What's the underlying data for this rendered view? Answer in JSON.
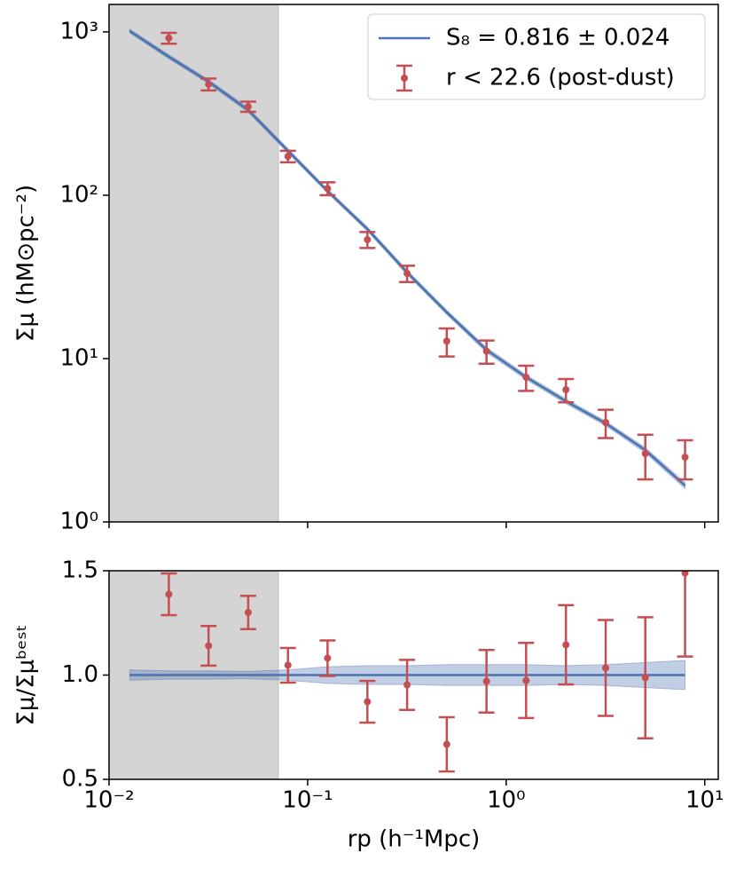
{
  "chart_data": [
    {
      "type": "errorbar",
      "ylabel": "Σμ (hM⊙pc⁻²)",
      "xlog": true,
      "ylog": true,
      "xlim": [
        0.01,
        11.7
      ],
      "ylim": [
        1,
        1472
      ],
      "xticks": [
        0.01,
        0.1,
        1,
        10
      ],
      "yticks": [
        {
          "value": 1,
          "label": "10⁰"
        },
        {
          "value": 10,
          "label": "10¹"
        },
        {
          "value": 100,
          "label": "10²"
        },
        {
          "value": 1000,
          "label": "10³"
        }
      ],
      "shaded_xrange": [
        0.01,
        0.0713
      ],
      "legend": "upper right",
      "series": [
        {
          "name": "S₈ = 0.816 ± 0.024",
          "kind": "line",
          "color": "#4c72b0",
          "x": [
            0.0127,
            0.02,
            0.0317,
            0.0502,
            0.0796,
            0.126,
            0.2,
            0.317,
            0.502,
            0.796,
            1.26,
            2.0,
            3.17,
            5.02,
            7.96
          ],
          "values": [
            1012,
            704,
            496,
            332,
            187,
            106,
            62.1,
            33.7,
            19.2,
            11.3,
            7.69,
            5.48,
            4.01,
            2.75,
            1.67
          ],
          "band_lower": [
            985,
            684,
            482,
            322,
            181,
            103,
            60.2,
            32.6,
            18.6,
            10.9,
            7.44,
            5.3,
            3.88,
            2.65,
            1.6
          ],
          "band_upper": [
            1040,
            724,
            510,
            342,
            193,
            109,
            64,
            34.8,
            19.8,
            11.7,
            7.94,
            5.66,
            4.14,
            2.85,
            1.74
          ]
        },
        {
          "name": "r < 22.6 (post-dust)",
          "kind": "points",
          "color": "#c44e52",
          "x": [
            0.02,
            0.0317,
            0.0502,
            0.0796,
            0.126,
            0.2,
            0.317,
            0.502,
            0.796,
            1.26,
            2.0,
            3.17,
            5.02,
            7.96
          ],
          "values": [
            916,
            478,
            349,
            173,
            110,
            53.5,
            33.2,
            12.8,
            11.1,
            7.69,
            6.45,
            4.06,
            2.62,
            2.49
          ],
          "errors": [
            70,
            40,
            25,
            14,
            10,
            6,
            3.8,
            2.5,
            1.8,
            1.35,
            1.05,
            0.8,
            0.8,
            0.67
          ]
        }
      ]
    },
    {
      "type": "errorbar",
      "xlabel": "rp (h⁻¹Mpc)",
      "ylabel": "Σμ/Σμᵇᵉˢᵗ",
      "xlog": true,
      "ylog": false,
      "xlim": [
        0.01,
        11.7
      ],
      "ylim": [
        0.5,
        1.5
      ],
      "xticks": [
        {
          "value": 0.01,
          "label": "10⁻²"
        },
        {
          "value": 0.1,
          "label": "10⁻¹"
        },
        {
          "value": 1,
          "label": "10⁰"
        },
        {
          "value": 10,
          "label": "10¹"
        }
      ],
      "yticks": [
        0.5,
        {
          "value": 1,
          "label": "1.0"
        },
        1.5
      ],
      "shaded_xrange": [
        0.01,
        0.0713
      ],
      "series": [
        {
          "kind": "line",
          "color": "#4c72b0",
          "x": [
            0.0127,
            0.02,
            0.0317,
            0.0502,
            0.0796,
            0.126,
            0.2,
            0.317,
            0.502,
            0.796,
            1.26,
            2.0,
            3.17,
            5.02,
            7.96
          ],
          "values": [
            1,
            1,
            1,
            1,
            1,
            1,
            1,
            1,
            1,
            1,
            1,
            1,
            1,
            1,
            1
          ],
          "band_lower": [
            0.975,
            0.98,
            0.98,
            0.982,
            0.975,
            0.96,
            0.955,
            0.955,
            0.95,
            0.95,
            0.95,
            0.955,
            0.95,
            0.94,
            0.93
          ],
          "band_upper": [
            1.025,
            1.02,
            1.02,
            1.018,
            1.025,
            1.04,
            1.045,
            1.045,
            1.05,
            1.05,
            1.05,
            1.045,
            1.05,
            1.06,
            1.07
          ]
        },
        {
          "kind": "points",
          "color": "#c44e52",
          "x": [
            0.02,
            0.0317,
            0.0502,
            0.0796,
            0.126,
            0.2,
            0.317,
            0.502,
            0.796,
            1.26,
            2.0,
            3.17,
            5.02,
            7.96
          ],
          "values": [
            1.387,
            1.14,
            1.3,
            1.047,
            1.081,
            0.872,
            0.953,
            0.668,
            0.97,
            0.974,
            1.145,
            1.034,
            0.987,
            1.489
          ],
          "errors": [
            0.1,
            0.095,
            0.08,
            0.083,
            0.085,
            0.1,
            0.12,
            0.13,
            0.15,
            0.18,
            0.19,
            0.23,
            0.29,
            0.4
          ]
        }
      ]
    }
  ]
}
